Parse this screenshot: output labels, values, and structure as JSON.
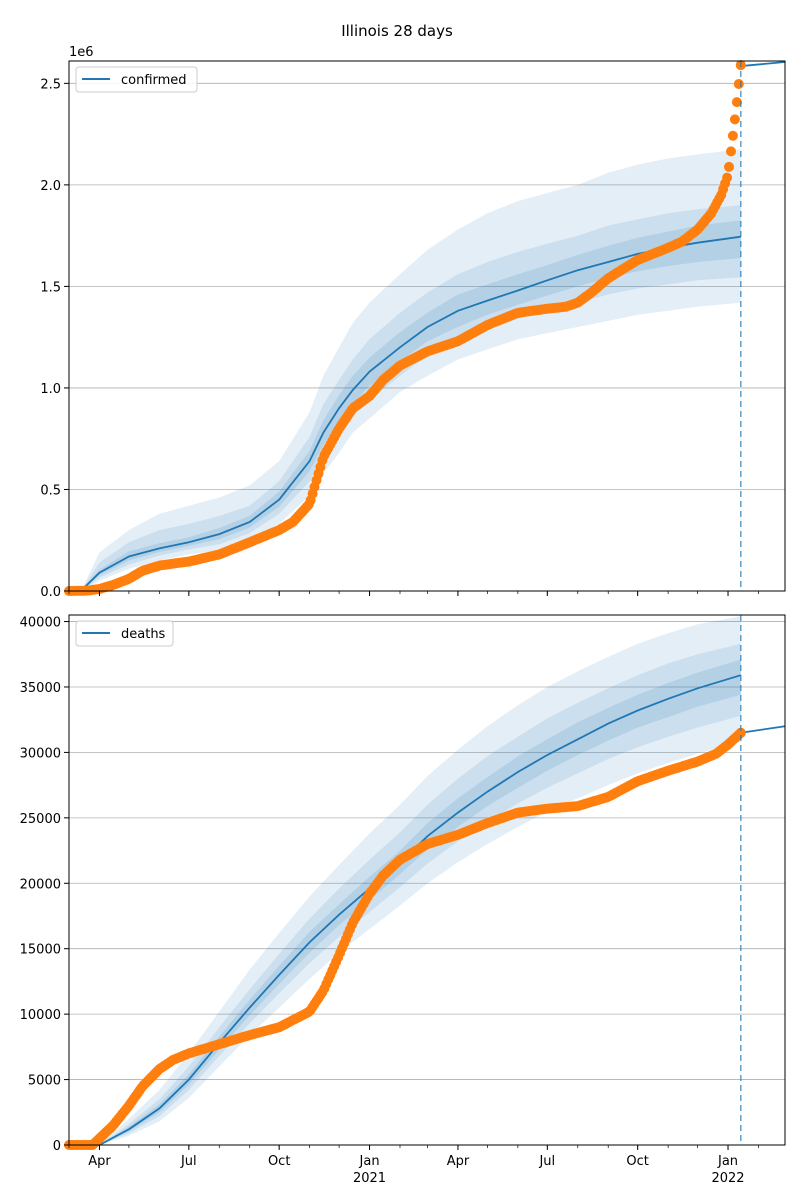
{
  "figure": {
    "title": "Illinois 28 days"
  },
  "colors": {
    "model": "#1f77b4",
    "observed": "#ff7f0e",
    "grid": "#b0b0b0",
    "band": "#1f77b4"
  },
  "chart_data": [
    {
      "type": "line",
      "name": "confirmed-panel",
      "x_range": [
        "2020-03-01",
        "2022-02-28"
      ],
      "ylim": [
        0,
        2610000
      ],
      "y_offset_label": "1e6",
      "y_ticks": [
        0,
        500000,
        1000000,
        1500000,
        2000000,
        2500000
      ],
      "y_tick_labels": [
        "0.0",
        "0.5",
        "1.0",
        "1.5",
        "2.0",
        "2.5"
      ],
      "grid": "horizontal",
      "legend": {
        "placement": "top-left",
        "entries": [
          "confirmed"
        ]
      },
      "forecast_date": "2022-01-14",
      "model": {
        "dates": [
          "2020-03-01",
          "2020-03-15",
          "2020-04-01",
          "2020-05-01",
          "2020-06-01",
          "2020-07-01",
          "2020-08-01",
          "2020-09-01",
          "2020-10-01",
          "2020-11-01",
          "2020-11-15",
          "2020-12-01",
          "2020-12-15",
          "2021-01-01",
          "2021-02-01",
          "2021-03-01",
          "2021-04-01",
          "2021-05-01",
          "2021-06-01",
          "2021-07-01",
          "2021-08-01",
          "2021-09-01",
          "2021-10-01",
          "2021-11-01",
          "2021-12-01",
          "2022-01-14"
        ],
        "values": [
          0,
          10000,
          90000,
          170000,
          210000,
          240000,
          280000,
          340000,
          450000,
          640000,
          780000,
          900000,
          990000,
          1080000,
          1200000,
          1300000,
          1380000,
          1430000,
          1480000,
          1530000,
          1580000,
          1620000,
          1660000,
          1690000,
          1715000,
          1745000
        ],
        "bands": [
          {
            "lower": [
              0,
              4000,
              50000,
              110000,
              150000,
              180000,
              200000,
              250000,
              330000,
              470000,
              580000,
              680000,
              780000,
              850000,
              980000,
              1060000,
              1140000,
              1190000,
              1240000,
              1270000,
              1300000,
              1330000,
              1360000,
              1380000,
              1400000,
              1420000
            ],
            "upper": [
              0,
              18000,
              190000,
              300000,
              380000,
              420000,
              460000,
              520000,
              640000,
              880000,
              1060000,
              1200000,
              1320000,
              1420000,
              1560000,
              1680000,
              1780000,
              1860000,
              1920000,
              1960000,
              2000000,
              2060000,
              2100000,
              2130000,
              2150000,
              2175000
            ]
          },
          {
            "lower": [
              0,
              6000,
              65000,
              130000,
              175000,
              205000,
              230000,
              285000,
              380000,
              540000,
              660000,
              770000,
              860000,
              940000,
              1060000,
              1160000,
              1230000,
              1290000,
              1340000,
              1380000,
              1420000,
              1460000,
              1490000,
              1510000,
              1530000,
              1545000
            ],
            "upper": [
              0,
              14000,
              140000,
              240000,
              300000,
              330000,
              370000,
              420000,
              540000,
              760000,
              920000,
              1040000,
              1140000,
              1240000,
              1370000,
              1470000,
              1560000,
              1620000,
              1670000,
              1710000,
              1750000,
              1800000,
              1830000,
              1860000,
              1880000,
              1900000
            ]
          },
          {
            "lower": [
              0,
              8000,
              78000,
              150000,
              192000,
              222000,
              255000,
              312000,
              415000,
              590000,
              720000,
              835000,
              925000,
              1010000,
              1130000,
              1230000,
              1300000,
              1360000,
              1410000,
              1455000,
              1500000,
              1540000,
              1575000,
              1600000,
              1620000,
              1640000
            ],
            "upper": [
              0,
              12000,
              105000,
              195000,
              235000,
              265000,
              310000,
              370000,
              490000,
              690000,
              840000,
              965000,
              1060000,
              1150000,
              1275000,
              1370000,
              1460000,
              1510000,
              1560000,
              1605000,
              1655000,
              1700000,
              1740000,
              1770000,
              1800000,
              1825000
            ]
          }
        ],
        "projection": {
          "dates": [
            "2022-01-14",
            "2022-02-28"
          ],
          "values": [
            2585000,
            2605000
          ]
        }
      },
      "observed": {
        "dates": [
          "2020-03-01",
          "2020-03-20",
          "2020-04-01",
          "2020-04-15",
          "2020-05-01",
          "2020-05-15",
          "2020-06-01",
          "2020-06-15",
          "2020-07-01",
          "2020-08-01",
          "2020-09-01",
          "2020-10-01",
          "2020-10-15",
          "2020-11-01",
          "2020-11-15",
          "2020-12-01",
          "2020-12-15",
          "2021-01-01",
          "2021-01-15",
          "2021-02-01",
          "2021-03-01",
          "2021-04-01",
          "2021-05-01",
          "2021-06-01",
          "2021-07-01",
          "2021-07-20",
          "2021-08-01",
          "2021-08-15",
          "2021-09-01",
          "2021-10-01",
          "2021-11-01",
          "2021-11-15",
          "2021-12-01",
          "2021-12-15",
          "2021-12-25",
          "2022-01-01",
          "2022-01-07",
          "2022-01-11",
          "2022-01-14"
        ],
        "values": [
          0,
          2000,
          10000,
          30000,
          60000,
          100000,
          125000,
          135000,
          145000,
          180000,
          240000,
          300000,
          340000,
          430000,
          660000,
          800000,
          900000,
          960000,
          1040000,
          1110000,
          1180000,
          1230000,
          1310000,
          1370000,
          1390000,
          1400000,
          1420000,
          1470000,
          1540000,
          1630000,
          1690000,
          1720000,
          1780000,
          1860000,
          1950000,
          2050000,
          2280000,
          2450000,
          2590000
        ]
      }
    },
    {
      "type": "line",
      "name": "deaths-panel",
      "x_range": [
        "2020-03-01",
        "2022-02-28"
      ],
      "ylim": [
        0,
        40500
      ],
      "y_ticks": [
        0,
        5000,
        10000,
        15000,
        20000,
        25000,
        30000,
        35000,
        40000
      ],
      "y_tick_labels": [
        "0",
        "5000",
        "10000",
        "15000",
        "20000",
        "25000",
        "30000",
        "35000",
        "40000"
      ],
      "x_tick_labels": [
        {
          "date": "2020-04-01",
          "label": "Apr"
        },
        {
          "date": "2020-07-01",
          "label": "Jul"
        },
        {
          "date": "2020-10-01",
          "label": "Oct"
        },
        {
          "date": "2021-01-01",
          "label": "Jan",
          "sub": "2021"
        },
        {
          "date": "2021-04-01",
          "label": "Apr"
        },
        {
          "date": "2021-07-01",
          "label": "Jul"
        },
        {
          "date": "2021-10-01",
          "label": "Oct"
        },
        {
          "date": "2022-01-01",
          "label": "Jan",
          "sub": "2022"
        }
      ],
      "grid": "horizontal",
      "legend": {
        "placement": "top-left",
        "entries": [
          "deaths"
        ]
      },
      "forecast_date": "2022-01-14",
      "model": {
        "dates": [
          "2020-03-01",
          "2020-04-01",
          "2020-05-01",
          "2020-06-01",
          "2020-07-01",
          "2020-08-01",
          "2020-09-01",
          "2020-10-01",
          "2020-11-01",
          "2020-12-01",
          "2021-01-01",
          "2021-02-01",
          "2021-03-01",
          "2021-04-01",
          "2021-05-01",
          "2021-06-01",
          "2021-07-01",
          "2021-08-01",
          "2021-09-01",
          "2021-10-01",
          "2021-11-01",
          "2021-12-01",
          "2022-01-14"
        ],
        "values": [
          0,
          0,
          1200,
          2800,
          5000,
          7800,
          10500,
          13000,
          15500,
          17600,
          19600,
          21600,
          23600,
          25400,
          27000,
          28500,
          29800,
          31000,
          32200,
          33200,
          34100,
          34900,
          35900
        ],
        "bands": [
          {
            "lower": [
              0,
              0,
              700,
              1800,
              3600,
              6000,
              8400,
              10500,
              12700,
              14700,
              16500,
              18300,
              20000,
              21600,
              23000,
              24300,
              25500,
              26500,
              27500,
              28400,
              29200,
              29900,
              30800
            ],
            "upper": [
              0,
              0,
              2000,
              4200,
              7000,
              10200,
              13400,
              16200,
              19000,
              21400,
              23800,
              26000,
              28200,
              30200,
              32000,
              33600,
              35000,
              36200,
              37300,
              38300,
              39100,
              39800,
              40400
            ]
          },
          {
            "lower": [
              0,
              0,
              900,
              2200,
              4200,
              6800,
              9300,
              11600,
              13900,
              15900,
              17800,
              19700,
              21500,
              23200,
              24700,
              26100,
              27300,
              28400,
              29500,
              30400,
              31200,
              31900,
              32800
            ],
            "upper": [
              0,
              0,
              1600,
              3500,
              6000,
              9000,
              11900,
              14600,
              17300,
              19600,
              21800,
              23900,
              26000,
              28000,
              29700,
              31200,
              32600,
              33800,
              34900,
              35900,
              36800,
              37500,
              38300
            ]
          },
          {
            "lower": [
              0,
              0,
              1050,
              2500,
              4600,
              7300,
              9900,
              12300,
              14700,
              16800,
              18700,
              20700,
              22600,
              24300,
              25900,
              27300,
              28600,
              29800,
              30900,
              31900,
              32700,
              33500,
              34400
            ],
            "upper": [
              0,
              0,
              1400,
              3100,
              5400,
              8300,
              11100,
              13700,
              16300,
              18400,
              20500,
              22500,
              24600,
              26500,
              28100,
              29700,
              31000,
              32300,
              33400,
              34400,
              35300,
              36100,
              37100
            ]
          }
        ],
        "projection": {
          "dates": [
            "2022-01-14",
            "2022-02-28"
          ],
          "values": [
            31500,
            32000
          ]
        }
      },
      "observed": {
        "dates": [
          "2020-03-01",
          "2020-03-25",
          "2020-04-01",
          "2020-04-15",
          "2020-05-01",
          "2020-05-15",
          "2020-06-01",
          "2020-06-15",
          "2020-07-01",
          "2020-08-01",
          "2020-09-01",
          "2020-10-01",
          "2020-11-01",
          "2020-11-15",
          "2020-12-01",
          "2020-12-15",
          "2021-01-01",
          "2021-01-15",
          "2021-02-01",
          "2021-03-01",
          "2021-04-01",
          "2021-05-01",
          "2021-06-01",
          "2021-07-01",
          "2021-08-01",
          "2021-09-01",
          "2021-10-01",
          "2021-11-01",
          "2021-12-01",
          "2021-12-20",
          "2022-01-01",
          "2022-01-14"
        ],
        "values": [
          0,
          0,
          500,
          1500,
          3000,
          4500,
          5800,
          6500,
          7000,
          7700,
          8400,
          9000,
          10200,
          11800,
          14500,
          17000,
          19200,
          20600,
          21800,
          23000,
          23700,
          24600,
          25400,
          25700,
          25900,
          26600,
          27800,
          28600,
          29300,
          29900,
          30600,
          31500
        ]
      }
    }
  ]
}
